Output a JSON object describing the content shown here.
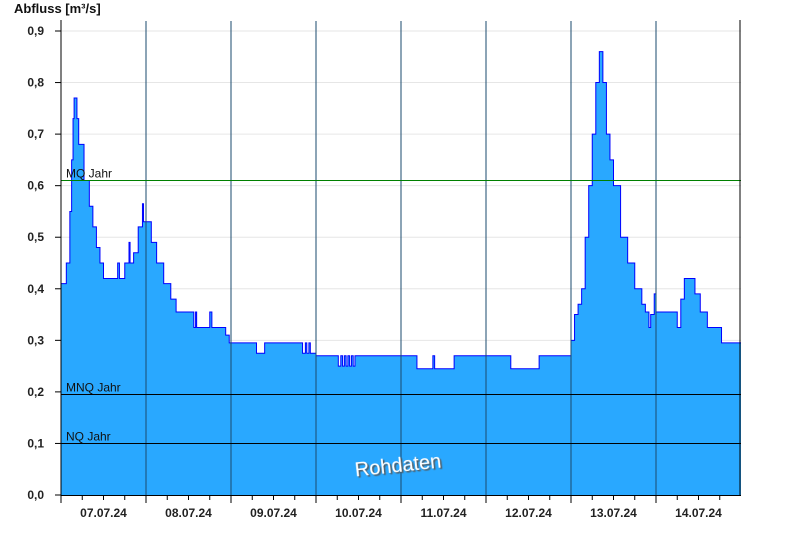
{
  "chart_data": {
    "type": "area",
    "title": "",
    "ylabel": "Abfluss [m³/s]",
    "xlabel": "",
    "ylim": [
      0,
      0.9
    ],
    "yticks": [
      "0,0",
      "0,1",
      "0,2",
      "0,3",
      "0,4",
      "0,5",
      "0,6",
      "0,7",
      "0,8",
      "0,9"
    ],
    "x_start": "07.07.24 00:00",
    "x_range_hours": [
      0,
      192
    ],
    "xticks": [
      "07.07.24",
      "08.07.24",
      "09.07.24",
      "10.07.24",
      "11.07.24",
      "12.07.24",
      "13.07.24",
      "14.07.24"
    ],
    "grid": true,
    "series": [
      {
        "hours": [
          0,
          1.5,
          2.5,
          3,
          3.4,
          3.7,
          4.5,
          5,
          6.5,
          8,
          9,
          10,
          11,
          12,
          16,
          16.5,
          17.5,
          18,
          19,
          19.2,
          19.5,
          20.5,
          21.8,
          23,
          23.3,
          25,
          25.5,
          27,
          29,
          31,
          32.5,
          37,
          37.5,
          38,
          38.3,
          42,
          42.6,
          46,
          46.5,
          47.5,
          55,
          55.2,
          57,
          57.5,
          68,
          68.2,
          69,
          69.4,
          70,
          70.4,
          71,
          72,
          78,
          78.3,
          79,
          79.5,
          80,
          80.5,
          81,
          81.5,
          82,
          82.5,
          83,
          84.5,
          100,
          100.5,
          104.5,
          105,
          105.5,
          110,
          111,
          126.5,
          127,
          134.5,
          135,
          143,
          144,
          145,
          146,
          147,
          148,
          149,
          150,
          151,
          152,
          153,
          154,
          155,
          156,
          158,
          160,
          162,
          164,
          165,
          166,
          166.5,
          167.5,
          168,
          173,
          174,
          175,
          176,
          178,
          179,
          180.5,
          182.5,
          186,
          186.5,
          192
        ],
        "values": [
          0.41,
          0.45,
          0.55,
          0.65,
          0.73,
          0.77,
          0.73,
          0.68,
          0.61,
          0.56,
          0.52,
          0.48,
          0.45,
          0.42,
          0.45,
          0.42,
          0.42,
          0.45,
          0.45,
          0.49,
          0.45,
          0.47,
          0.52,
          0.565,
          0.53,
          0.53,
          0.49,
          0.45,
          0.41,
          0.38,
          0.355,
          0.355,
          0.325,
          0.355,
          0.325,
          0.355,
          0.325,
          0.325,
          0.31,
          0.295,
          0.295,
          0.275,
          0.275,
          0.295,
          0.295,
          0.275,
          0.295,
          0.275,
          0.295,
          0.275,
          0.275,
          0.27,
          0.27,
          0.25,
          0.27,
          0.25,
          0.27,
          0.25,
          0.27,
          0.25,
          0.27,
          0.25,
          0.27,
          0.27,
          0.27,
          0.245,
          0.245,
          0.27,
          0.245,
          0.245,
          0.27,
          0.27,
          0.245,
          0.245,
          0.27,
          0.27,
          0.3,
          0.35,
          0.37,
          0.4,
          0.5,
          0.6,
          0.7,
          0.8,
          0.86,
          0.8,
          0.7,
          0.65,
          0.6,
          0.5,
          0.45,
          0.4,
          0.37,
          0.355,
          0.325,
          0.35,
          0.39,
          0.355,
          0.355,
          0.325,
          0.38,
          0.42,
          0.42,
          0.39,
          0.355,
          0.325,
          0.325,
          0.295,
          0.295
        ]
      }
    ],
    "reference_lines": [
      {
        "label": "MQ Jahr",
        "value": 0.61,
        "color": "#008000"
      },
      {
        "label": "MNQ Jahr",
        "value": 0.195,
        "color": "#000000"
      },
      {
        "label": "NQ Jahr",
        "value": 0.1,
        "color": "#000000"
      }
    ],
    "fill_color": "#29a8ff",
    "line_color": "#0000ff",
    "watermark": "Rohdaten"
  }
}
